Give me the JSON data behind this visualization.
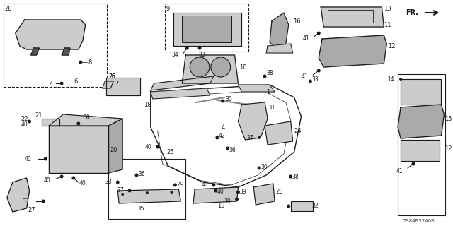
{
  "bg_color": "#ffffff",
  "line_color": "#1a1a1a",
  "diagram_code": "TS84B3740B",
  "fig_w": 6.4,
  "fig_h": 3.2,
  "dpi": 100
}
